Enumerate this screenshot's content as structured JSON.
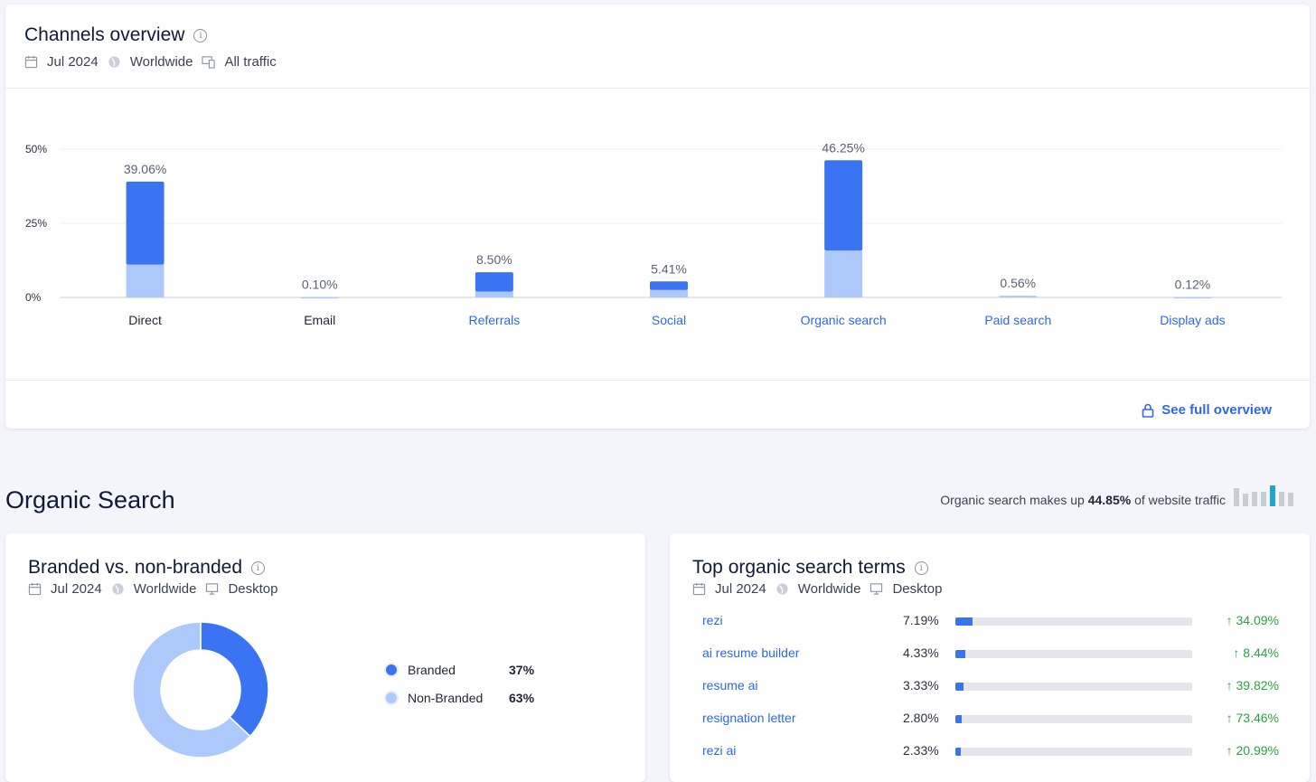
{
  "channels_overview": {
    "title": "Channels overview",
    "meta": {
      "date": "Jul 2024",
      "region": "Worldwide",
      "traffic": "All traffic"
    },
    "see_full_label": "See full overview"
  },
  "chart_data": {
    "type": "bar",
    "stacked": true,
    "categories": [
      "Direct",
      "Email",
      "Referrals",
      "Social",
      "Organic search",
      "Paid search",
      "Display ads"
    ],
    "totals": [
      39.06,
      0.1,
      8.5,
      5.41,
      46.25,
      0.56,
      0.12
    ],
    "total_labels": [
      "39.06%",
      "0.10%",
      "8.50%",
      "5.41%",
      "46.25%",
      "0.56%",
      "0.12%"
    ],
    "series": [
      {
        "name": "light segment",
        "values": [
          11.1,
          0.1,
          2.0,
          2.5,
          15.8,
          0.56,
          0.12
        ]
      },
      {
        "name": "dark segment",
        "values": [
          27.96,
          0.0,
          6.5,
          2.91,
          30.45,
          0.0,
          0.0
        ]
      }
    ],
    "category_links": [
      false,
      false,
      true,
      true,
      true,
      true,
      true
    ],
    "yticks": [
      "50%",
      "25%",
      "0%"
    ],
    "ytick_values": [
      50,
      25,
      0
    ],
    "ylim": [
      0,
      50
    ],
    "colors": {
      "dark": "#3b74f3",
      "light": "#adc8fb",
      "link": "#2f67e8",
      "text": "#1f2533"
    }
  },
  "organic": {
    "title": "Organic Search",
    "note_prefix": "Organic search makes up",
    "note_value": "44.85%",
    "note_suffix": "of website traffic"
  },
  "branded": {
    "title": "Branded vs. non-branded",
    "meta": {
      "date": "Jul 2024",
      "region": "Worldwide",
      "device": "Desktop"
    },
    "legend": [
      {
        "label": "Branded",
        "value": "37%",
        "share": 37,
        "color": "#3b74f3"
      },
      {
        "label": "Non-Branded",
        "value": "63%",
        "share": 63,
        "color": "#adc8fb"
      }
    ]
  },
  "terms": {
    "title": "Top organic search terms",
    "meta": {
      "date": "Jul 2024",
      "region": "Worldwide",
      "device": "Desktop"
    },
    "rows": [
      {
        "term": "rezi",
        "share": "7.19%",
        "share_pct": 7.19,
        "change": "↑ 34.09%"
      },
      {
        "term": "ai resume builder",
        "share": "4.33%",
        "share_pct": 4.33,
        "change": "↑ 8.44%"
      },
      {
        "term": "resume ai",
        "share": "3.33%",
        "share_pct": 3.33,
        "change": "↑ 39.82%"
      },
      {
        "term": "resignation letter",
        "share": "2.80%",
        "share_pct": 2.8,
        "change": "↑ 73.46%"
      },
      {
        "term": "rezi ai",
        "share": "2.33%",
        "share_pct": 2.33,
        "change": "↑ 20.99%"
      }
    ]
  }
}
